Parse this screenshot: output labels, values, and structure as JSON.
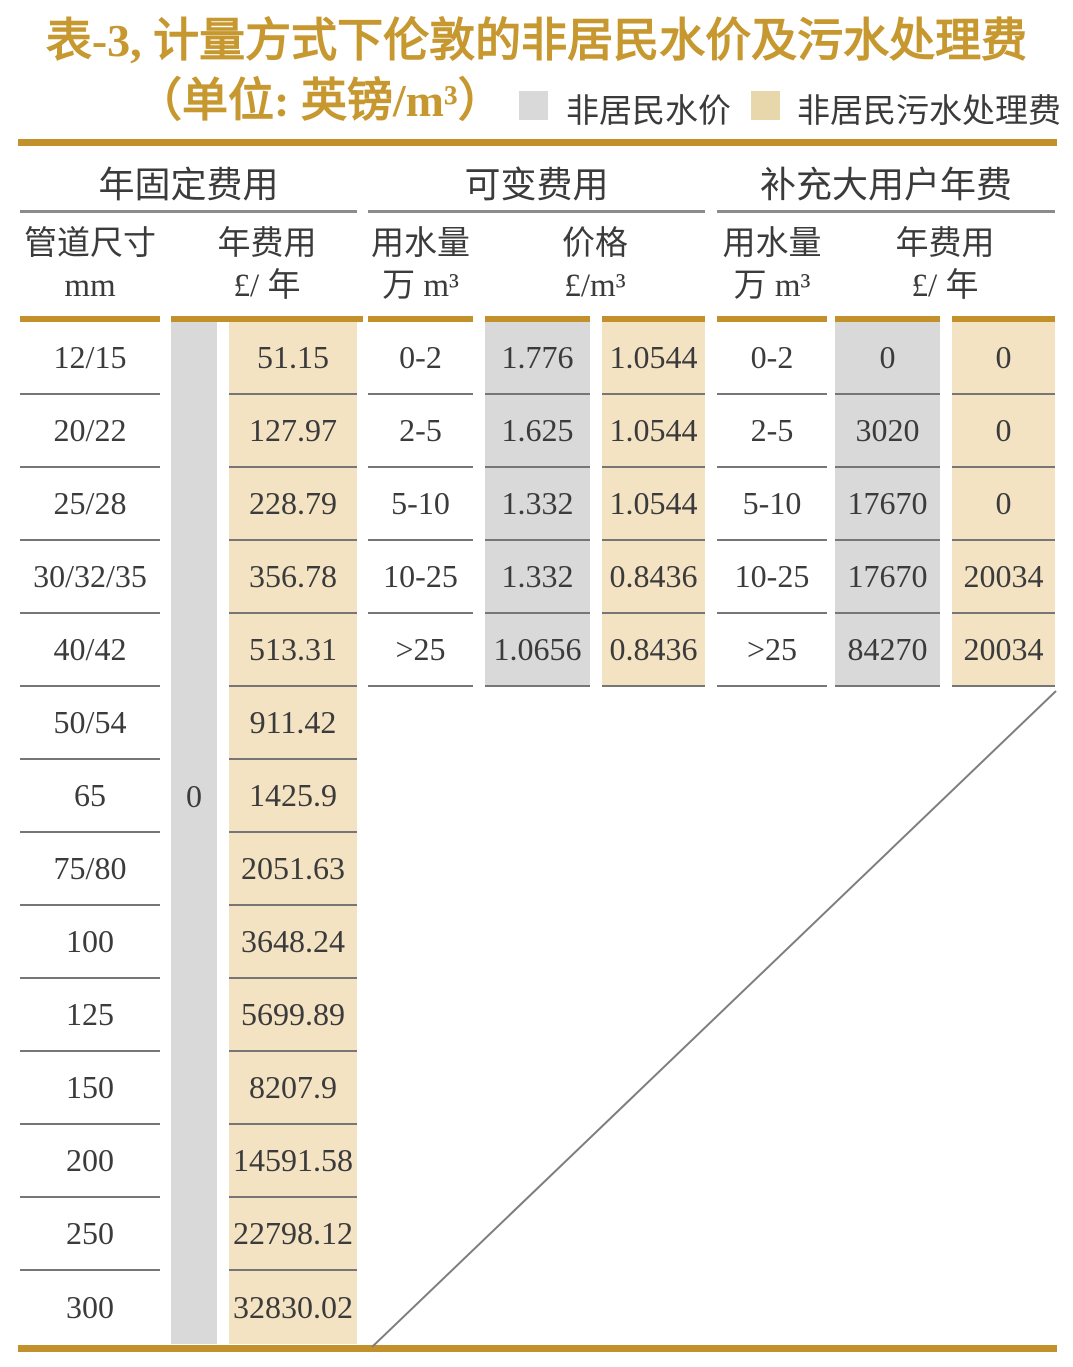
{
  "title": "表-3, 计量方式下伦敦的非居民水价及污水处理费",
  "subtitle": "（单位: 英镑/m³）",
  "legend": [
    {
      "label": "非居民水价",
      "color": "#d9d9d9"
    },
    {
      "label": "非居民污水处理费",
      "color": "#e9d7ac"
    }
  ],
  "colors": {
    "accent_gold": "#c2912c",
    "title_gold": "#c6982f",
    "water_price_fill": "#d9d9d9",
    "sewage_fee_fill": "#f3e3c3",
    "text": "#3b3b3b",
    "rule_gray": "#8b8b8b",
    "row_separator": "#767676"
  },
  "chart_data": {
    "type": "table",
    "title": "表-3, 计量方式下伦敦的非居民水价及污水处理费（单位: 英镑/m³）",
    "legend": [
      "非居民水价",
      "非居民污水处理费"
    ],
    "groups": [
      {
        "name": "年固定费用",
        "columns": [
          [
            "管道尺寸",
            "mm"
          ],
          [
            "年费用",
            "£/ 年"
          ]
        ],
        "pipe_sizes_mm": [
          "12/15",
          "20/22",
          "25/28",
          "30/32/35",
          "40/42",
          "50/54",
          "65",
          "75/80",
          "100",
          "125",
          "150",
          "200",
          "250",
          "300"
        ],
        "water_price_annual_fee": "0",
        "sewage_annual_fees": [
          "51.15",
          "127.97",
          "228.79",
          "356.78",
          "513.31",
          "911.42",
          "1425.9",
          "2051.63",
          "3648.24",
          "5699.89",
          "8207.9",
          "14591.58",
          "22798.12",
          "32830.02"
        ]
      },
      {
        "name": "可变费用",
        "columns": [
          [
            "用水量",
            "万 m³"
          ],
          [
            "价格",
            "£/m³"
          ]
        ],
        "usage_bands": [
          "0-2",
          "2-5",
          "5-10",
          "10-25",
          ">25"
        ],
        "water_prices": [
          "1.776",
          "1.625",
          "1.332",
          "1.332",
          "1.0656"
        ],
        "sewage_prices": [
          "1.0544",
          "1.0544",
          "1.0544",
          "0.8436",
          "0.8436"
        ]
      },
      {
        "name": "补充大用户年费",
        "columns": [
          [
            "用水量",
            "万 m³"
          ],
          [
            "年费用",
            "£/ 年"
          ]
        ],
        "usage_bands": [
          "0-2",
          "2-5",
          "5-10",
          "10-25",
          ">25"
        ],
        "water_annual_fees": [
          "0",
          "3020",
          "17670",
          "17670",
          "84270"
        ],
        "sewage_annual_fees": [
          "0",
          "0",
          "0",
          "20034",
          "20034"
        ]
      }
    ]
  }
}
